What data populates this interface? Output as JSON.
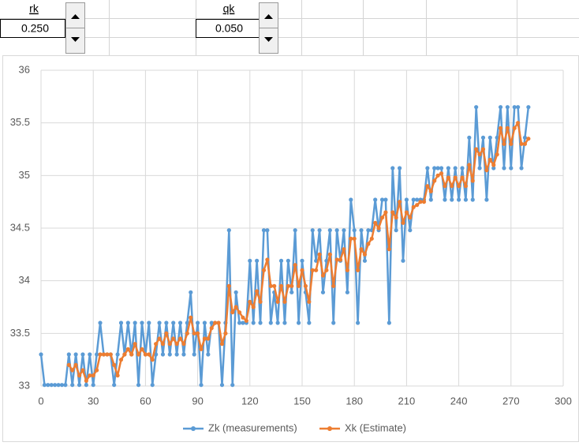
{
  "controls": [
    {
      "label": "rk",
      "value": "0.250"
    },
    {
      "label": "qk",
      "value": "0.050"
    }
  ],
  "chart_data": {
    "type": "line",
    "x": [
      0,
      2,
      4,
      6,
      8,
      10,
      12,
      14,
      16,
      18,
      20,
      22,
      24,
      26,
      28,
      30,
      32,
      34,
      36,
      38,
      40,
      42,
      44,
      46,
      48,
      50,
      52,
      54,
      56,
      58,
      60,
      62,
      64,
      66,
      68,
      70,
      72,
      74,
      76,
      78,
      80,
      82,
      84,
      86,
      88,
      90,
      92,
      94,
      96,
      98,
      100,
      102,
      104,
      106,
      108,
      110,
      112,
      114,
      116,
      118,
      120,
      122,
      124,
      126,
      128,
      130,
      132,
      134,
      136,
      138,
      140,
      142,
      144,
      146,
      148,
      150,
      152,
      154,
      156,
      158,
      160,
      162,
      164,
      166,
      168,
      170,
      172,
      174,
      176,
      178,
      180,
      182,
      184,
      186,
      188,
      190,
      192,
      194,
      196,
      198,
      200,
      202,
      204,
      206,
      208,
      210,
      212,
      214,
      216,
      218,
      220,
      222,
      224,
      226,
      228,
      230,
      232,
      234,
      236,
      238,
      240,
      242,
      244,
      246,
      248,
      250,
      252,
      254,
      256,
      258,
      260,
      262,
      264,
      266,
      268,
      270,
      272,
      274,
      276,
      278,
      280
    ],
    "series": [
      {
        "name": "Zk (measurements)",
        "color": "#5b9bd5",
        "values": [
          33.3,
          33.01,
          33.01,
          33.01,
          33.01,
          33.01,
          33.01,
          33.01,
          33.3,
          33.01,
          33.3,
          33.01,
          33.3,
          33.01,
          33.3,
          33.01,
          33.3,
          33.6,
          33.3,
          33.3,
          33.3,
          33.01,
          33.3,
          33.6,
          33.3,
          33.6,
          33.3,
          33.6,
          33.01,
          33.6,
          33.3,
          33.6,
          33.01,
          33.3,
          33.6,
          33.3,
          33.6,
          33.3,
          33.6,
          33.3,
          33.6,
          33.3,
          33.6,
          33.89,
          33.3,
          33.6,
          33.01,
          33.6,
          33.3,
          33.6,
          33.6,
          33.6,
          33.01,
          33.6,
          34.48,
          33.01,
          33.89,
          33.6,
          33.6,
          33.6,
          34.19,
          33.6,
          34.19,
          33.6,
          34.48,
          34.48,
          33.6,
          33.89,
          33.6,
          34.19,
          33.6,
          34.19,
          33.89,
          34.48,
          33.6,
          34.19,
          33.89,
          33.6,
          34.48,
          34.19,
          34.48,
          33.89,
          34.19,
          34.48,
          33.6,
          34.48,
          34.19,
          34.48,
          33.89,
          34.77,
          34.48,
          33.6,
          34.48,
          34.19,
          34.48,
          34.48,
          34.77,
          34.48,
          34.77,
          34.77,
          33.6,
          35.07,
          34.48,
          35.07,
          34.19,
          34.77,
          34.48,
          34.77,
          34.77,
          34.77,
          34.77,
          35.07,
          34.77,
          35.07,
          35.07,
          35.07,
          34.77,
          35.07,
          34.77,
          35.07,
          34.77,
          35.07,
          34.77,
          35.36,
          34.77,
          35.65,
          35.07,
          35.36,
          34.77,
          35.36,
          35.07,
          35.36,
          35.65,
          35.07,
          35.65,
          35.07,
          35.65,
          35.65,
          35.07,
          35.36,
          35.65
        ]
      },
      {
        "name": "Xk (Estimate)",
        "color": "#ed7d31",
        "values": [
          null,
          null,
          null,
          null,
          null,
          null,
          null,
          null,
          33.2,
          33.15,
          33.2,
          33.1,
          33.15,
          33.05,
          33.1,
          33.1,
          33.15,
          33.3,
          33.3,
          33.3,
          33.3,
          33.2,
          33.1,
          33.25,
          33.3,
          33.35,
          33.3,
          33.4,
          33.3,
          33.35,
          33.3,
          33.3,
          33.25,
          33.4,
          33.45,
          33.4,
          33.5,
          33.4,
          33.45,
          33.4,
          33.45,
          33.4,
          33.5,
          33.65,
          33.5,
          33.5,
          33.35,
          33.45,
          33.45,
          33.55,
          33.6,
          33.6,
          33.4,
          33.5,
          33.95,
          33.7,
          33.75,
          33.7,
          33.65,
          33.62,
          33.8,
          33.75,
          33.9,
          33.8,
          34.1,
          34.2,
          33.95,
          33.95,
          33.8,
          33.95,
          33.8,
          33.95,
          33.95,
          34.15,
          33.95,
          34.1,
          33.95,
          33.8,
          34.1,
          34.1,
          34.25,
          34.05,
          34.1,
          34.25,
          33.95,
          34.2,
          34.2,
          34.3,
          34.1,
          34.4,
          34.4,
          34.1,
          34.3,
          34.25,
          34.35,
          34.4,
          34.55,
          34.5,
          34.6,
          34.65,
          34.3,
          34.65,
          34.6,
          34.75,
          34.55,
          34.65,
          34.6,
          34.7,
          34.72,
          34.75,
          34.75,
          34.9,
          34.85,
          34.95,
          35.0,
          35.02,
          34.9,
          34.98,
          34.9,
          34.98,
          34.9,
          34.98,
          34.9,
          35.1,
          34.95,
          35.25,
          35.2,
          35.25,
          35.05,
          35.15,
          35.1,
          35.2,
          35.45,
          35.3,
          35.45,
          35.3,
          35.45,
          35.5,
          35.3,
          35.3,
          35.35
        ]
      }
    ],
    "xlim": [
      0,
      300
    ],
    "xticks": [
      0,
      30,
      60,
      90,
      120,
      150,
      180,
      210,
      240,
      270,
      300
    ],
    "ylim": [
      33,
      36
    ],
    "yticks": [
      33,
      33.5,
      34,
      34.5,
      35,
      35.5,
      36
    ],
    "grid": true,
    "legend": "bottom"
  }
}
